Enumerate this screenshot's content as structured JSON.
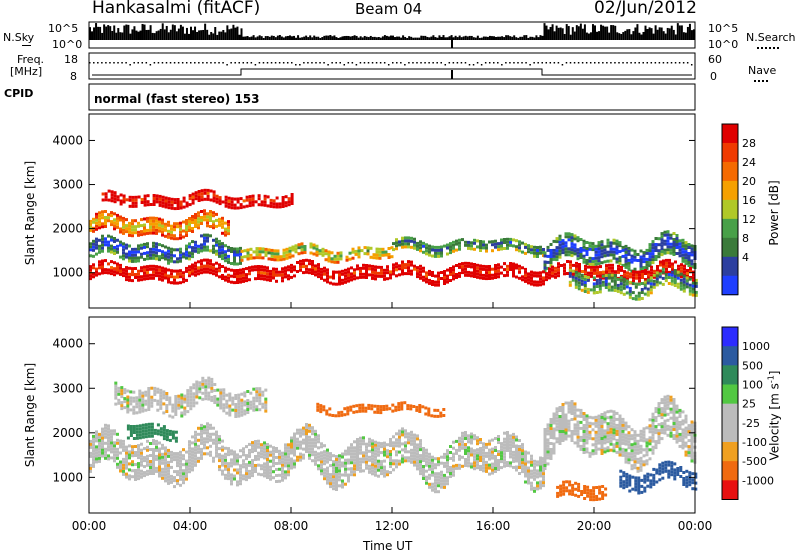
{
  "header": {
    "station": "Hankasalmi (fitACF)",
    "beam": "Beam 04",
    "date": "02/Jun/2012"
  },
  "summary_panels": {
    "nsky_label": "N.Sky",
    "nsky_ticks": [
      "10^5",
      "10^0"
    ],
    "nsearch_label": "N.Search",
    "nsearch_ticks": [
      "10^5",
      "10^0"
    ],
    "freq_label_1": "Freq.",
    "freq_label_2": "[MHz]",
    "freq_ticks": [
      "18",
      "8"
    ],
    "nave_label": "Nave",
    "nave_ticks": [
      "60",
      "0"
    ],
    "cpid_label": "CPID",
    "cpid_text": "normal (fast stereo) 153"
  },
  "colors": {
    "power": [
      "#1f3fff",
      "#2c3f9f",
      "#3a7a3a",
      "#48a048",
      "#b0c828",
      "#f5a000",
      "#f56a00",
      "#f03a00",
      "#e00000"
    ],
    "velocity": [
      "#2c2cff",
      "#2b5aa0",
      "#2f8a5a",
      "#52c842",
      "#bcbcbc",
      "#bcbcbc",
      "#f0a020",
      "#f06a10",
      "#e81010"
    ]
  },
  "chart_data": [
    {
      "type": "heatmap",
      "name": "power",
      "title": "",
      "xlabel": "",
      "ylabel": "Slant Range [km]",
      "xlim": [
        "00:00",
        "24:00"
      ],
      "ylim": [
        200,
        4600
      ],
      "x_ticks": [
        "00:00",
        "04:00",
        "08:00",
        "12:00",
        "16:00",
        "20:00",
        "00:00"
      ],
      "y_ticks": [
        "1000",
        "2000",
        "3000",
        "4000"
      ],
      "colorbar_label": "Power [dB]",
      "colorbar_ticks": [
        "4",
        "8",
        "12",
        "16",
        "20",
        "24",
        "28"
      ],
      "bands": [
        {
          "start_h": 0.0,
          "end_h": 6.0,
          "center_km": 1550,
          "width_km": 400,
          "level": 8
        },
        {
          "start_h": 6.0,
          "end_h": 12.0,
          "center_km": 1500,
          "width_km": 250,
          "level": 5
        },
        {
          "start_h": 12.0,
          "end_h": 18.0,
          "center_km": 1650,
          "width_km": 250,
          "level": 7
        },
        {
          "start_h": 18.0,
          "end_h": 24.0,
          "center_km": 1500,
          "width_km": 500,
          "level": 8
        },
        {
          "start_h": 0.0,
          "end_h": 24.0,
          "center_km": 1050,
          "width_km": 300,
          "level": 1
        },
        {
          "start_h": 0.5,
          "end_h": 8.0,
          "center_km": 2700,
          "width_km": 250,
          "level": 1
        },
        {
          "start_h": 0.0,
          "end_h": 5.5,
          "center_km": 2100,
          "width_km": 350,
          "level": 4
        },
        {
          "start_h": 19.0,
          "end_h": 24.0,
          "center_km": 800,
          "width_km": 400,
          "level": 7
        }
      ]
    },
    {
      "type": "heatmap",
      "name": "velocity",
      "title": "",
      "xlabel": "Time UT",
      "ylabel": "Slant Range [km]",
      "xlim": [
        "00:00",
        "24:00"
      ],
      "ylim": [
        200,
        4600
      ],
      "x_ticks": [
        "00:00",
        "04:00",
        "08:00",
        "12:00",
        "16:00",
        "20:00",
        "00:00"
      ],
      "y_ticks": [
        "1000",
        "2000",
        "3000",
        "4000"
      ],
      "colorbar_label": "Velocity [m s-1]",
      "colorbar_ticks": [
        "1000",
        "500",
        "100",
        "25",
        "-25",
        "-100",
        "-500",
        "-1000"
      ],
      "bands": [
        {
          "start_h": 0.0,
          "end_h": 18.0,
          "center_km": 1500,
          "width_km": 800,
          "value": 0
        },
        {
          "start_h": 1.0,
          "end_h": 7.0,
          "center_km": 2800,
          "width_km": 500,
          "value": 0
        },
        {
          "start_h": 1.5,
          "end_h": 3.5,
          "center_km": 2100,
          "width_km": 300,
          "value": 150
        },
        {
          "start_h": 18.0,
          "end_h": 24.0,
          "center_km": 2000,
          "width_km": 900,
          "value": 0
        },
        {
          "start_h": 21.0,
          "end_h": 24.0,
          "center_km": 1050,
          "width_km": 400,
          "value": 400
        },
        {
          "start_h": 18.5,
          "end_h": 20.5,
          "center_km": 700,
          "width_km": 300,
          "value": -300
        },
        {
          "start_h": 9.0,
          "end_h": 14.0,
          "center_km": 2600,
          "width_km": 200,
          "value": -200
        }
      ]
    }
  ]
}
